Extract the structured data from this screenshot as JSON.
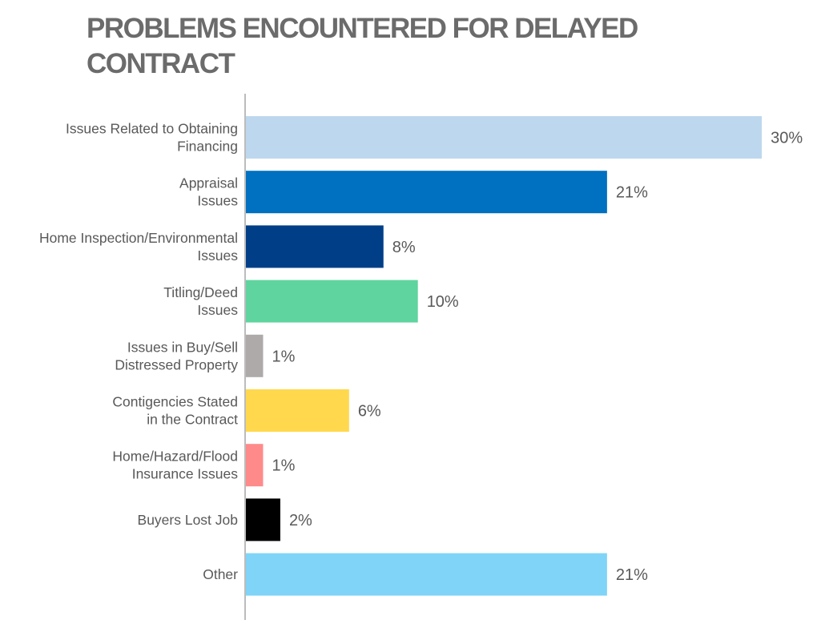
{
  "chart_data": {
    "type": "bar",
    "orientation": "horizontal",
    "title": "PROBLEMS ENCOUNTERED FOR DELAYED CONTRACT",
    "categories": [
      [
        "Issues Related to Obtaining",
        "Financing"
      ],
      [
        "Appraisal",
        "Issues"
      ],
      [
        "Home Inspection/Environmental",
        "Issues"
      ],
      [
        "Titling/Deed",
        "Issues"
      ],
      [
        "Issues in Buy/Sell",
        "Distressed Property"
      ],
      [
        "Contigencies Stated",
        "in the Contract"
      ],
      [
        "Home/Hazard/Flood",
        "Insurance Issues"
      ],
      [
        "Buyers Lost Job"
      ],
      [
        "Other"
      ]
    ],
    "values": [
      30,
      21,
      8,
      10,
      1,
      6,
      1,
      2,
      21
    ],
    "value_labels": [
      "30%",
      "21%",
      "8%",
      "10%",
      "1%",
      "6%",
      "1%",
      "2%",
      "21%"
    ],
    "colors": [
      "#bdd7ee",
      "#0070c0",
      "#003f87",
      "#5fd49e",
      "#aeaaaa",
      "#ffd84d",
      "#ff8a8a",
      "#000000",
      "#7fd4f7"
    ],
    "xlim": [
      0,
      30
    ],
    "grid": false,
    "legend": "none"
  }
}
